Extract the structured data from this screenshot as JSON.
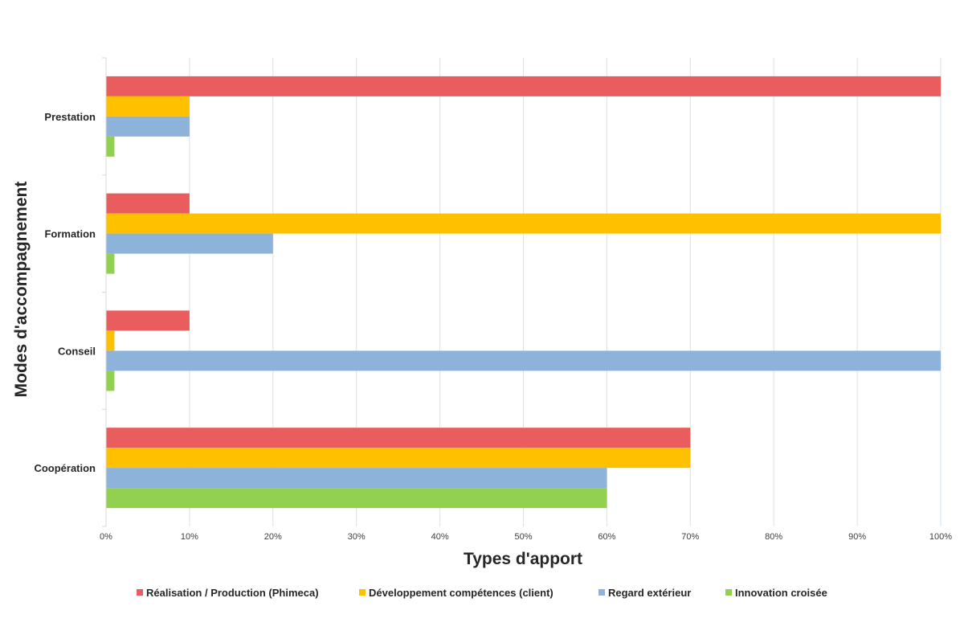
{
  "chart_data": {
    "type": "bar",
    "orientation": "horizontal",
    "title": "",
    "xlabel": "Types d'apport",
    "ylabel": "Modes d'accompagnement",
    "xlim": [
      0,
      100
    ],
    "x_ticks": [
      "0%",
      "10%",
      "20%",
      "30%",
      "40%",
      "50%",
      "60%",
      "70%",
      "80%",
      "90%",
      "100%"
    ],
    "categories": [
      "Prestation",
      "Formation",
      "Conseil",
      "Coopération"
    ],
    "series": [
      {
        "name": "Réalisation / Production (Phimeca)",
        "color": "#e95d5f",
        "values": [
          100,
          10,
          10,
          70
        ]
      },
      {
        "name": "Développement compétences (client)",
        "color": "#ffc000",
        "values": [
          10,
          100,
          1,
          70
        ]
      },
      {
        "name": "Regard extérieur",
        "color": "#8db3da",
        "values": [
          10,
          20,
          100,
          60
        ]
      },
      {
        "name": "Innovation croisée",
        "color": "#92d050",
        "values": [
          1,
          1,
          1,
          60
        ]
      }
    ],
    "grid": true,
    "legend_position": "bottom"
  }
}
